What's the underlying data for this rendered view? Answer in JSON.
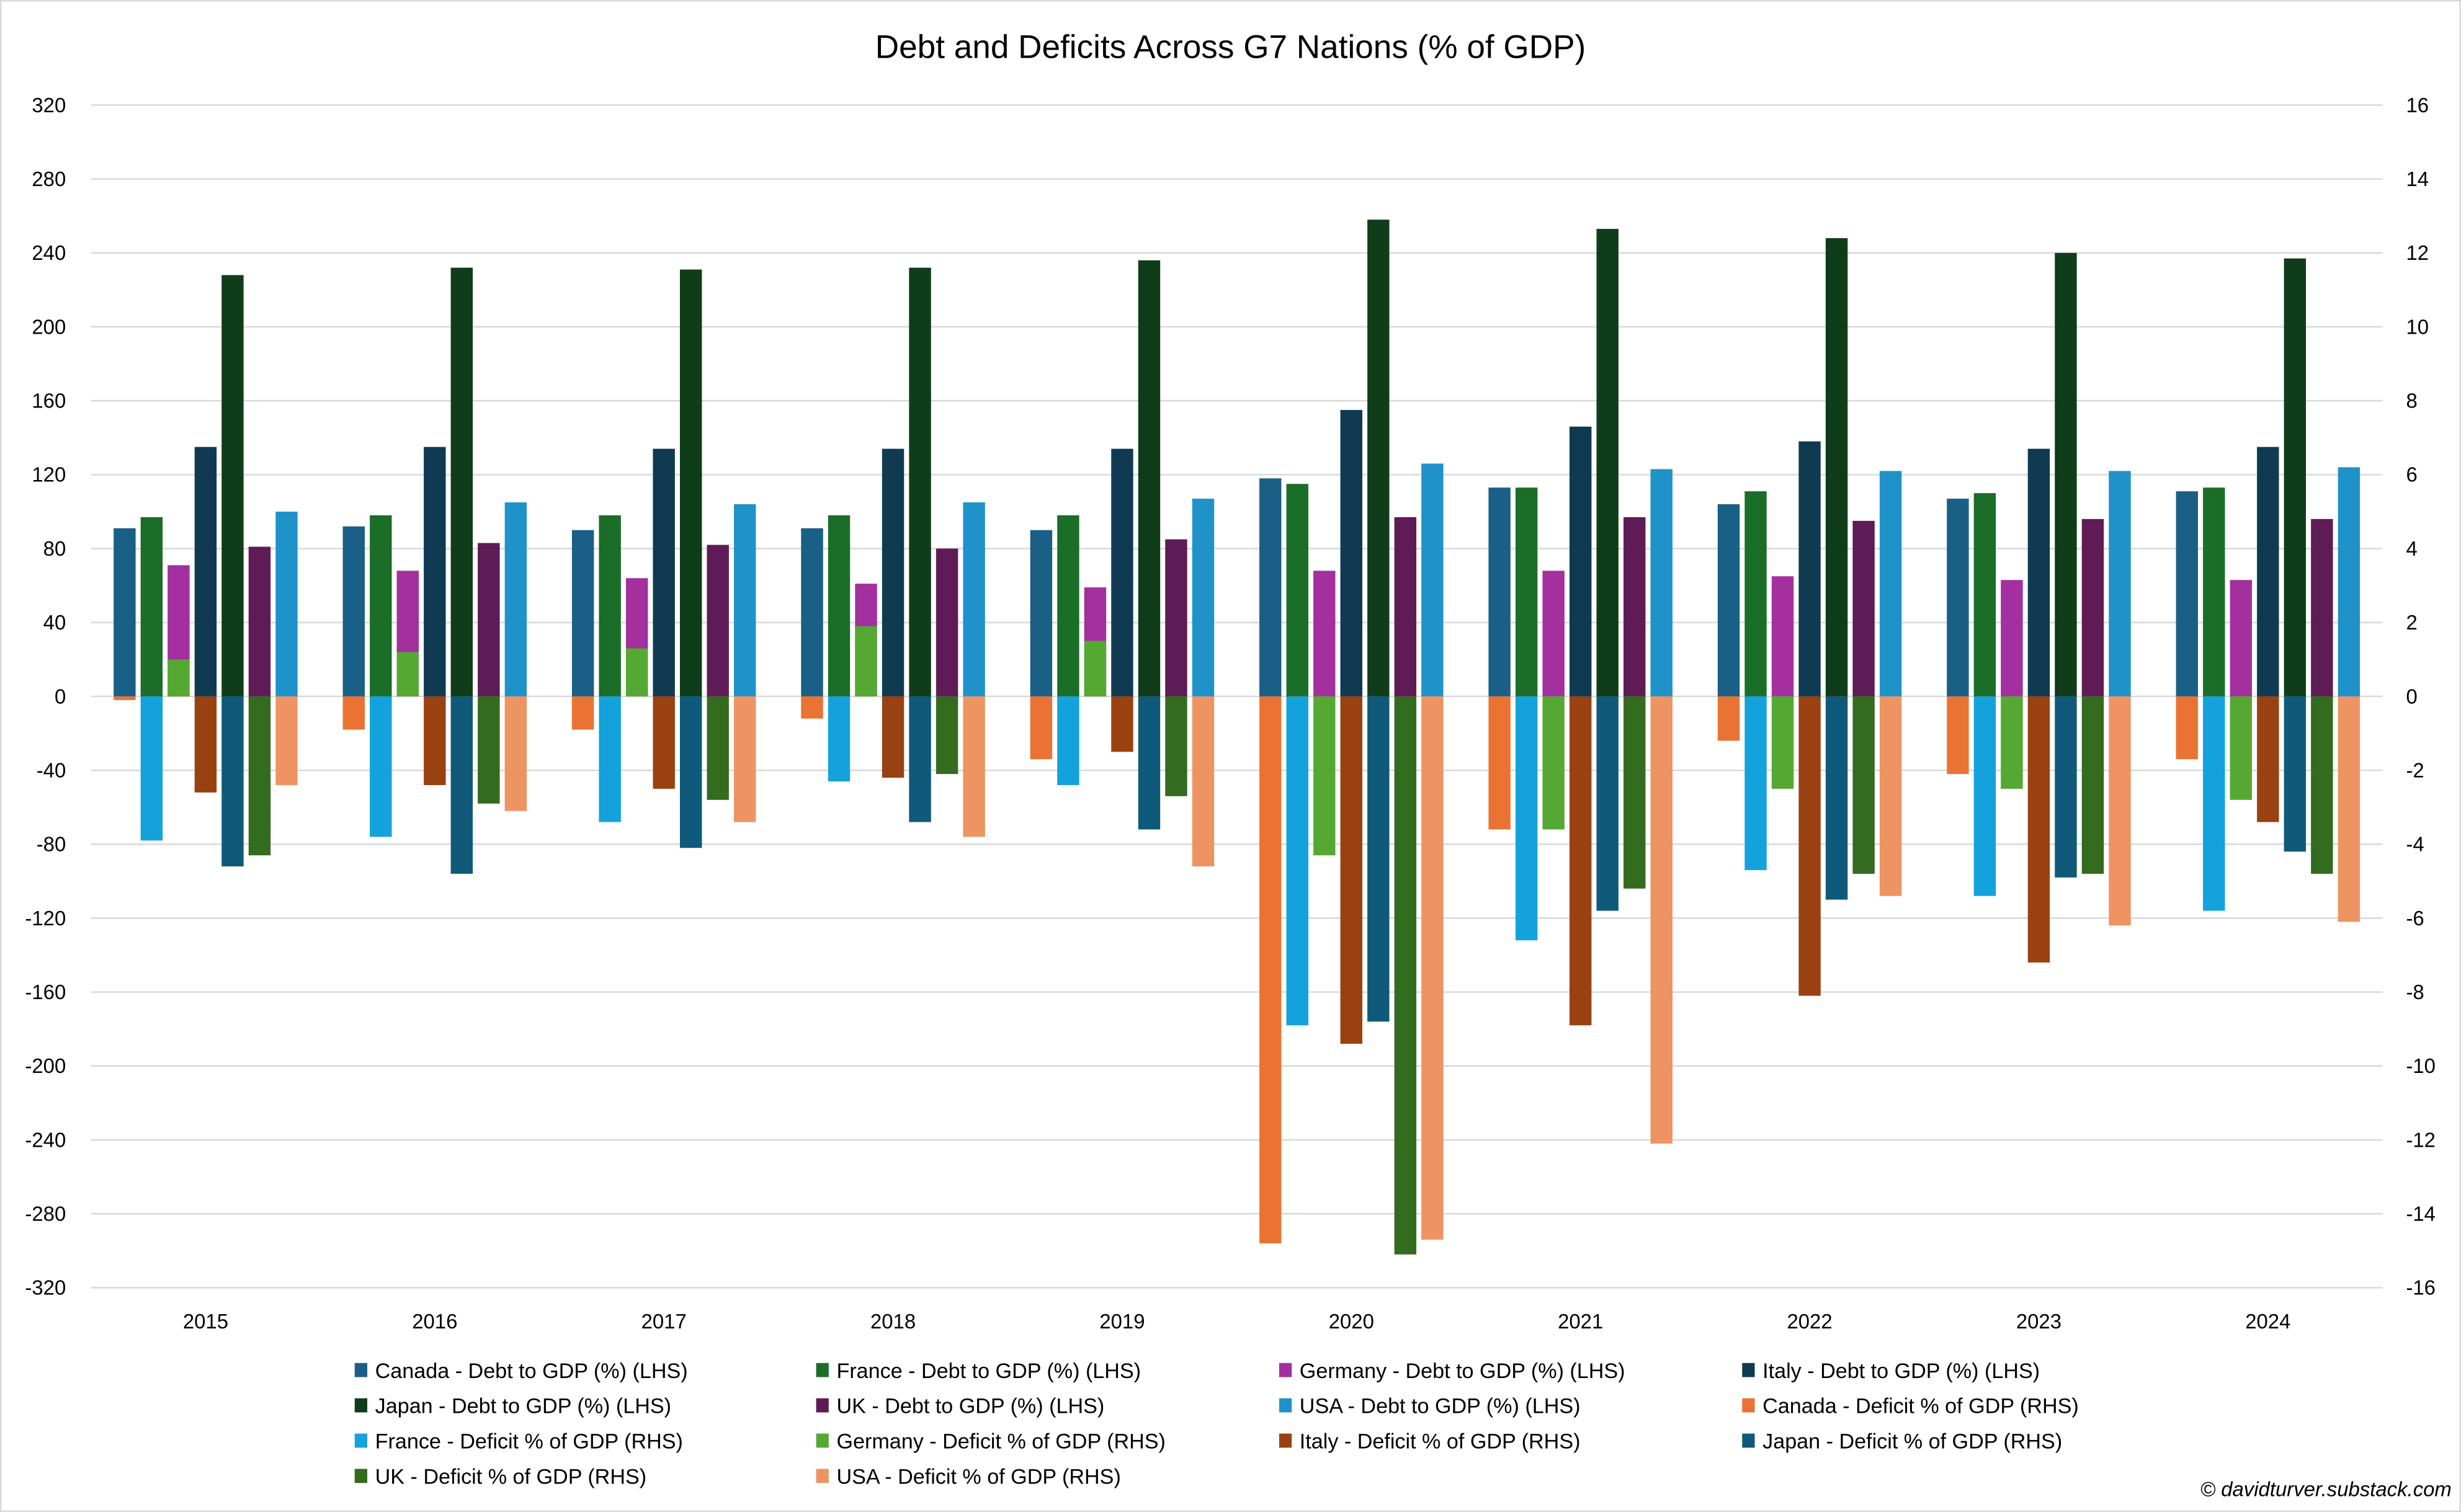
{
  "chart_data": {
    "type": "bar",
    "title": "Debt and Deficits Across G7 Nations (% of GDP)",
    "categories": [
      "2015",
      "2016",
      "2017",
      "2018",
      "2019",
      "2020",
      "2021",
      "2022",
      "2023",
      "2024"
    ],
    "y_left": {
      "label": "LHS",
      "range": [
        -320,
        320
      ],
      "step": 40
    },
    "y_right": {
      "label": "RHS",
      "range": [
        -16,
        16
      ],
      "step": 2
    },
    "grid": true,
    "legend_position": "bottom",
    "series": [
      {
        "name": "Canada - Debt to GDP (%) (LHS)",
        "axis": "left",
        "color": "#1a5f86",
        "values": [
          91,
          92,
          90,
          91,
          90,
          118,
          113,
          104,
          107,
          111
        ]
      },
      {
        "name": "France - Debt to GDP (%) (LHS)",
        "axis": "left",
        "color": "#1b6e28",
        "values": [
          97,
          98,
          98,
          98,
          98,
          115,
          113,
          111,
          110,
          113
        ]
      },
      {
        "name": "Germany - Debt to GDP (%) (LHS)",
        "axis": "left",
        "color": "#a3309e",
        "values": [
          71,
          68,
          64,
          61,
          59,
          68,
          68,
          65,
          63,
          63
        ]
      },
      {
        "name": "Italy - Debt to GDP (%) (LHS)",
        "axis": "left",
        "color": "#0f3a52",
        "values": [
          135,
          135,
          134,
          134,
          134,
          155,
          146,
          138,
          134,
          135
        ]
      },
      {
        "name": "Japan - Debt to GDP (%) (LHS)",
        "axis": "left",
        "color": "#0f3d19",
        "values": [
          228,
          232,
          231,
          232,
          236,
          258,
          253,
          248,
          240,
          237
        ]
      },
      {
        "name": "UK - Debt to GDP (%) (LHS)",
        "axis": "left",
        "color": "#5e1b56",
        "values": [
          81,
          83,
          82,
          80,
          85,
          97,
          97,
          95,
          96,
          96
        ]
      },
      {
        "name": "USA - Debt to GDP (%) (LHS)",
        "axis": "left",
        "color": "#1f93c9",
        "values": [
          100,
          105,
          104,
          105,
          107,
          126,
          123,
          122,
          122,
          124
        ]
      },
      {
        "name": "Canada - Deficit % of GDP (RHS)",
        "axis": "right",
        "color": "#ea7333",
        "values": [
          -0.1,
          -0.9,
          -0.9,
          -0.6,
          -1.7,
          -14.8,
          -3.6,
          -1.2,
          -2.1,
          -1.7
        ]
      },
      {
        "name": "France - Deficit % of GDP (RHS)",
        "axis": "right",
        "color": "#14a2dc",
        "values": [
          -3.9,
          -3.8,
          -3.4,
          -2.3,
          -2.4,
          -8.9,
          -6.6,
          -4.7,
          -5.4,
          -5.8
        ]
      },
      {
        "name": "Germany - Deficit % of GDP (RHS)",
        "axis": "right",
        "color": "#55a932",
        "values": [
          1.0,
          1.2,
          1.3,
          1.9,
          1.5,
          -4.3,
          -3.6,
          -2.5,
          -2.5,
          -2.8
        ]
      },
      {
        "name": "Italy - Deficit % of GDP (RHS)",
        "axis": "right",
        "color": "#9a4112",
        "values": [
          -2.6,
          -2.4,
          -2.5,
          -2.2,
          -1.5,
          -9.4,
          -8.9,
          -8.1,
          -7.2,
          -3.4
        ]
      },
      {
        "name": "Japan - Deficit % of GDP (RHS)",
        "axis": "right",
        "color": "#0f5a7a",
        "values": [
          -4.6,
          -4.8,
          -4.1,
          -3.4,
          -3.6,
          -8.8,
          -5.8,
          -5.5,
          -4.9,
          -4.2
        ]
      },
      {
        "name": "UK - Deficit % of GDP (RHS)",
        "axis": "right",
        "color": "#336b1f",
        "values": [
          -4.3,
          -2.9,
          -2.8,
          -2.1,
          -2.7,
          -15.1,
          -5.2,
          -4.8,
          -4.8,
          -4.8
        ]
      },
      {
        "name": "USA - Deficit % of GDP (RHS)",
        "axis": "right",
        "color": "#ee9462",
        "values": [
          -2.4,
          -3.1,
          -3.4,
          -3.8,
          -4.6,
          -14.7,
          -12.1,
          -5.4,
          -6.2,
          -6.1
        ]
      }
    ],
    "annotation": "© davidturver.substack.com"
  }
}
